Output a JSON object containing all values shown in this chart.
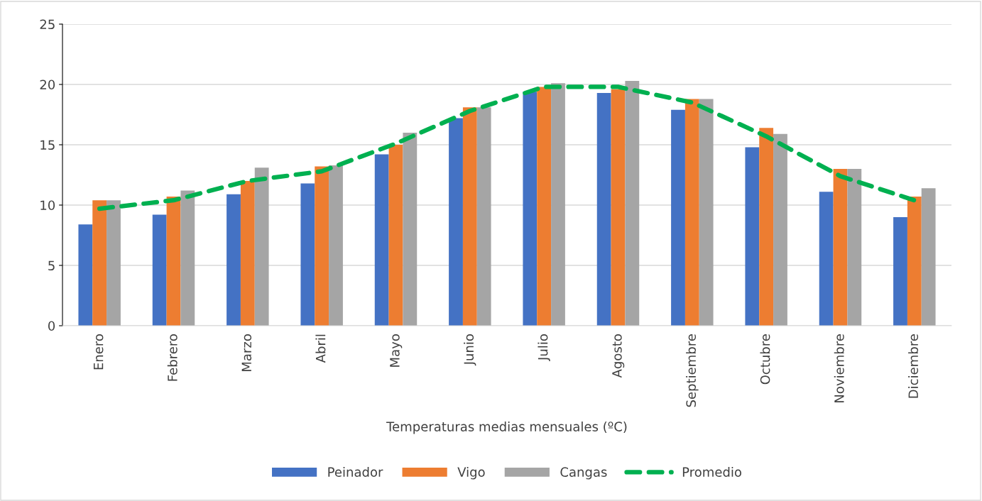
{
  "chart_data": {
    "type": "bar",
    "xlabel": "Temperaturas medias mensuales (ºC)",
    "categories": [
      "Enero",
      "Febrero",
      "Marzo",
      "Abril",
      "Mayo",
      "Junio",
      "Julio",
      "Agosto",
      "Septiembre",
      "Octubre",
      "Noviembre",
      "Diciembre"
    ],
    "series": [
      {
        "name": "Peinador",
        "color": "#4472c4",
        "values": [
          8.4,
          9.2,
          10.9,
          11.8,
          14.2,
          17.2,
          19.4,
          19.3,
          17.9,
          14.8,
          11.1,
          9.0
        ]
      },
      {
        "name": "Vigo",
        "color": "#ed7d31",
        "values": [
          10.4,
          10.7,
          12.0,
          13.2,
          15.0,
          18.1,
          19.8,
          19.6,
          18.8,
          16.4,
          13.0,
          10.7
        ]
      },
      {
        "name": "Cangas",
        "color": "#a5a5a5",
        "values": [
          10.4,
          11.2,
          13.1,
          13.3,
          16.0,
          18.1,
          20.1,
          20.3,
          18.8,
          15.9,
          13.0,
          11.4
        ]
      },
      {
        "name": "Promedio",
        "type": "line",
        "line_style": "dashed",
        "color": "#00b050",
        "values": [
          9.7,
          10.4,
          12.0,
          12.8,
          15.1,
          17.8,
          19.8,
          19.8,
          18.5,
          15.7,
          12.4,
          10.4
        ]
      }
    ],
    "ylim": [
      0,
      25
    ],
    "yticks": [
      0,
      5,
      10,
      15,
      20,
      25
    ],
    "grid": "y",
    "legend": "bottom"
  }
}
